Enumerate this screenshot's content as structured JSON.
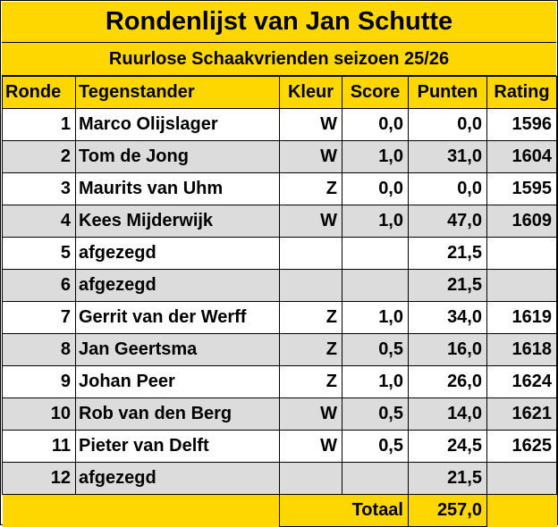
{
  "title": "Rondenlijst van Jan Schutte",
  "subtitle": "Ruurlose Schaakvrienden seizoen 25/26",
  "headers": {
    "ronde": "Ronde",
    "tegenstander": "Tegenstander",
    "kleur": "Kleur",
    "score": "Score",
    "punten": "Punten",
    "rating": "Rating"
  },
  "rows": [
    {
      "ronde": "1",
      "tegenstander": "Marco Olijslager",
      "kleur": "W",
      "score": "0,0",
      "punten": "0,0",
      "rating": "1596"
    },
    {
      "ronde": "2",
      "tegenstander": "Tom de Jong",
      "kleur": "W",
      "score": "1,0",
      "punten": "31,0",
      "rating": "1604"
    },
    {
      "ronde": "3",
      "tegenstander": "Maurits van Uhm",
      "kleur": "Z",
      "score": "0,0",
      "punten": "0,0",
      "rating": "1595"
    },
    {
      "ronde": "4",
      "tegenstander": "Kees Mijderwijk",
      "kleur": "W",
      "score": "1,0",
      "punten": "47,0",
      "rating": "1609"
    },
    {
      "ronde": "5",
      "tegenstander": "afgezegd",
      "kleur": "",
      "score": "",
      "punten": "21,5",
      "rating": ""
    },
    {
      "ronde": "6",
      "tegenstander": "afgezegd",
      "kleur": "",
      "score": "",
      "punten": "21,5",
      "rating": ""
    },
    {
      "ronde": "7",
      "tegenstander": "Gerrit van der Werff",
      "kleur": "Z",
      "score": "1,0",
      "punten": "34,0",
      "rating": "1619"
    },
    {
      "ronde": "8",
      "tegenstander": "Jan Geertsma",
      "kleur": "Z",
      "score": "0,5",
      "punten": "16,0",
      "rating": "1618"
    },
    {
      "ronde": "9",
      "tegenstander": "Johan Peer",
      "kleur": "Z",
      "score": "1,0",
      "punten": "26,0",
      "rating": "1624"
    },
    {
      "ronde": "10",
      "tegenstander": "Rob van den Berg",
      "kleur": "W",
      "score": "0,5",
      "punten": "14,0",
      "rating": "1621"
    },
    {
      "ronde": "11",
      "tegenstander": "Pieter van Delft",
      "kleur": "W",
      "score": "0,5",
      "punten": "24,5",
      "rating": "1625"
    },
    {
      "ronde": "12",
      "tegenstander": "afgezegd",
      "kleur": "",
      "score": "",
      "punten": "21,5",
      "rating": ""
    }
  ],
  "total": {
    "label": "Totaal",
    "punten": "257,0"
  },
  "colors": {
    "header_bg": "#ffd700",
    "alt_row_bg": "#dcdcdc",
    "row_bg": "#ffffff"
  }
}
